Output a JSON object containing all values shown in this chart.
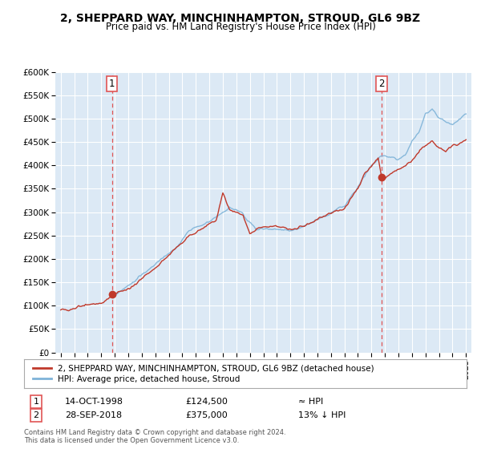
{
  "title": "2, SHEPPARD WAY, MINCHINHAMPTON, STROUD, GL6 9BZ",
  "subtitle": "Price paid vs. HM Land Registry's House Price Index (HPI)",
  "ylim": [
    0,
    600000
  ],
  "yticks": [
    0,
    50000,
    100000,
    150000,
    200000,
    250000,
    300000,
    350000,
    400000,
    450000,
    500000,
    550000,
    600000
  ],
  "ytick_labels": [
    "£0",
    "£50K",
    "£100K",
    "£150K",
    "£200K",
    "£250K",
    "£300K",
    "£350K",
    "£400K",
    "£450K",
    "£500K",
    "£550K",
    "£600K"
  ],
  "background_color": "#ffffff",
  "plot_bg_color": "#dce9f5",
  "grid_color": "#ffffff",
  "hpi_color": "#7eb3d8",
  "price_color": "#c0392b",
  "marker_color": "#c0392b",
  "marker_size": 7,
  "sale1_x": 1998.79,
  "sale1_y": 124500,
  "sale1_label": "1",
  "sale1_date": "14-OCT-1998",
  "sale1_price": "£124,500",
  "sale1_hpi": "≈ HPI",
  "sale2_x": 2018.75,
  "sale2_y": 375000,
  "sale2_label": "2",
  "sale2_date": "28-SEP-2018",
  "sale2_price": "£375,000",
  "sale2_hpi": "13% ↓ HPI",
  "vline_color": "#e05555",
  "legend_label_price": "2, SHEPPARD WAY, MINCHINHAMPTON, STROUD, GL6 9BZ (detached house)",
  "legend_label_hpi": "HPI: Average price, detached house, Stroud",
  "footer": "Contains HM Land Registry data © Crown copyright and database right 2024.\nThis data is licensed under the Open Government Licence v3.0.",
  "xtick_years": [
    1995,
    1996,
    1997,
    1998,
    1999,
    2000,
    2001,
    2002,
    2003,
    2004,
    2005,
    2006,
    2007,
    2008,
    2009,
    2010,
    2011,
    2012,
    2013,
    2014,
    2015,
    2016,
    2017,
    2018,
    2019,
    2020,
    2021,
    2022,
    2023,
    2024,
    2025
  ],
  "xlim_left": 1994.6,
  "xlim_right": 2025.4
}
